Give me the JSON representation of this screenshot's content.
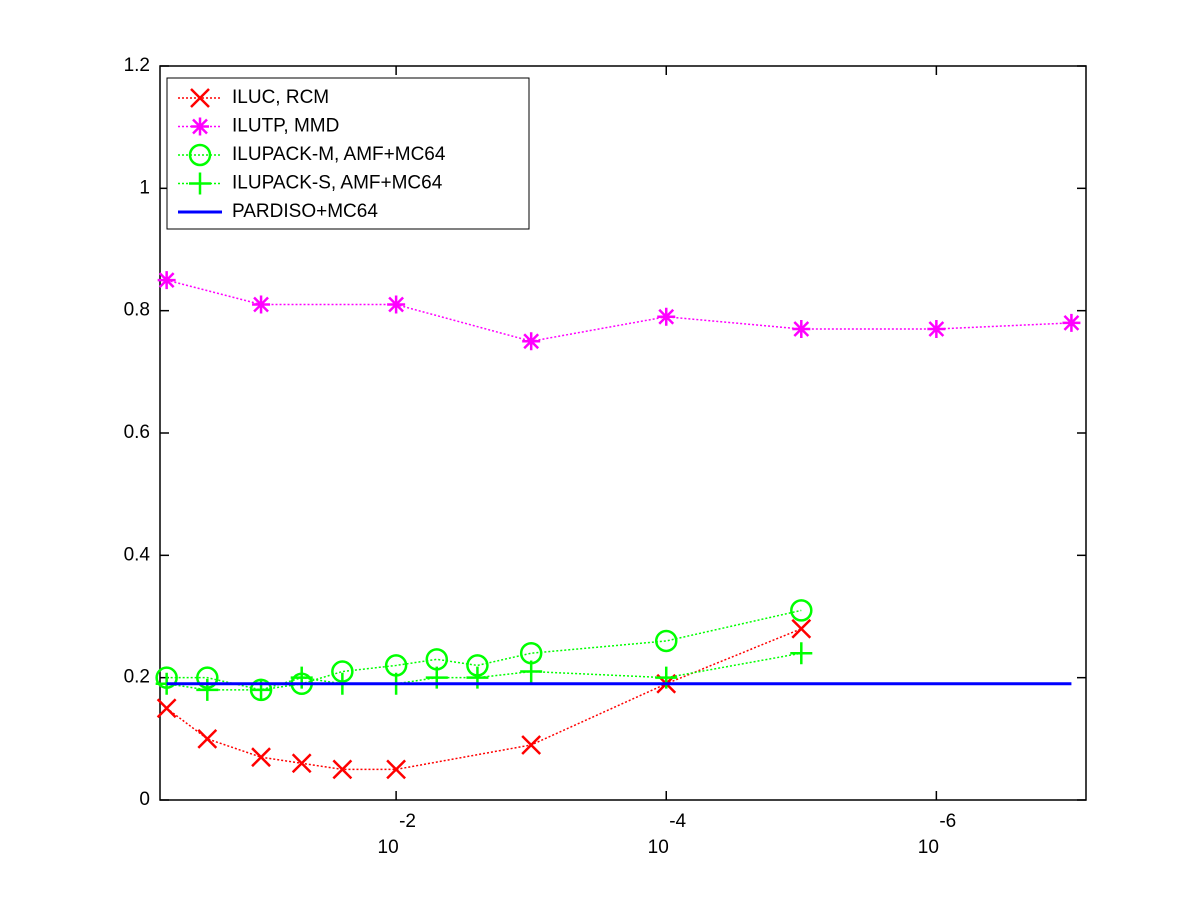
{
  "chart_data": {
    "type": "line",
    "xscale": "log",
    "xlim": [
      0.56,
      7.8e-08
    ],
    "ylim": [
      0,
      1.2
    ],
    "xticks": [
      {
        "value": 0.01,
        "label": "10",
        "exponent": "-2"
      },
      {
        "value": 0.0001,
        "label": "10",
        "exponent": "-4"
      },
      {
        "value": 1e-06,
        "label": "10",
        "exponent": "-6"
      }
    ],
    "yticks": [
      0,
      0.2,
      0.4,
      0.6,
      0.8,
      1,
      1.2
    ],
    "legend": "upper left",
    "series": [
      {
        "name": "ILUC, RCM",
        "color": "#ff0000",
        "marker": "x",
        "x": [
          0.5,
          0.25,
          0.1,
          0.05,
          0.025,
          0.01,
          0.001,
          0.0001,
          1e-05
        ],
        "values": [
          0.15,
          0.1,
          0.07,
          0.06,
          0.05,
          0.05,
          0.09,
          0.19,
          0.28
        ]
      },
      {
        "name": "ILUTP, MMD",
        "color": "#ff00ff",
        "marker": "*",
        "x": [
          0.5,
          0.1,
          0.01,
          0.001,
          0.0001,
          1e-05,
          1e-06,
          1e-07
        ],
        "values": [
          0.85,
          0.81,
          0.81,
          0.75,
          0.79,
          0.77,
          0.77,
          0.78
        ]
      },
      {
        "name": "ILUPACK-M, AMF+MC64",
        "color": "#00ff00",
        "marker": "o",
        "x": [
          0.5,
          0.25,
          0.1,
          0.05,
          0.025,
          0.01,
          0.005,
          0.0025,
          0.001,
          0.0001,
          1e-05
        ],
        "values": [
          0.2,
          0.2,
          0.18,
          0.19,
          0.21,
          0.22,
          0.23,
          0.22,
          0.24,
          0.26,
          0.31
        ]
      },
      {
        "name": "ILUPACK-S, AMF+MC64",
        "color": "#00ff00",
        "marker": "+",
        "x": [
          0.5,
          0.25,
          0.1,
          0.05,
          0.025,
          0.01,
          0.005,
          0.0025,
          0.001,
          0.0001,
          1e-05
        ],
        "values": [
          0.19,
          0.18,
          0.18,
          0.2,
          0.19,
          0.19,
          0.2,
          0.2,
          0.21,
          0.2,
          0.24
        ]
      },
      {
        "name": "PARDISO+MC64",
        "color": "#0000ff",
        "marker": "none",
        "linestyle": "solid",
        "x": [
          0.5,
          1e-07
        ],
        "values": [
          0.19,
          0.19
        ]
      }
    ]
  }
}
